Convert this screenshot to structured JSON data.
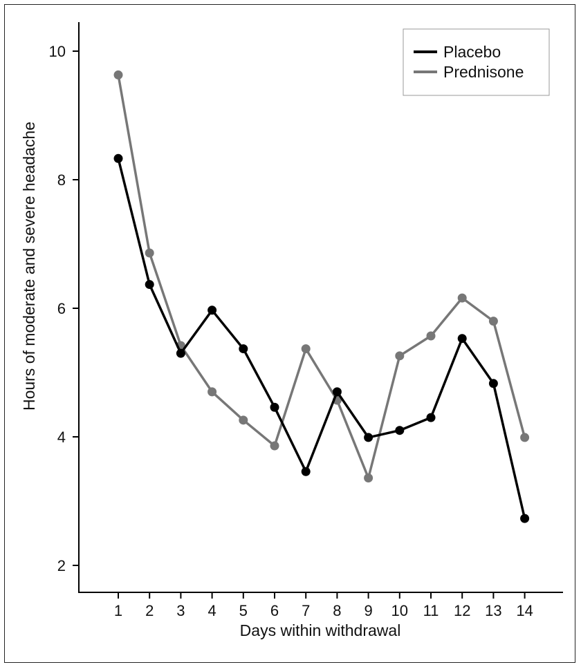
{
  "chart_data": {
    "type": "line",
    "xlabel": "Days within withdrawal",
    "ylabel": "Hours of moderate and severe headache",
    "x": [
      1,
      2,
      3,
      4,
      5,
      6,
      7,
      8,
      9,
      10,
      11,
      12,
      13,
      14
    ],
    "xticks": [
      "1",
      "2",
      "3",
      "4",
      "5",
      "6",
      "7",
      "8",
      "9",
      "10",
      "11",
      "12",
      "13",
      "14"
    ],
    "yticks": [
      "2",
      "4",
      "6",
      "8",
      "10"
    ],
    "ylim": [
      1.5,
      10.5
    ],
    "grid": false,
    "legend_position": "top-right",
    "series": [
      {
        "name": "Placebo",
        "color": "#000000",
        "values": [
          8.33,
          6.37,
          5.3,
          5.97,
          5.37,
          4.46,
          3.46,
          4.7,
          3.99,
          4.1,
          4.3,
          5.53,
          4.83,
          2.73
        ]
      },
      {
        "name": "Prednisone",
        "color": "#777777",
        "values": [
          9.63,
          6.86,
          5.42,
          4.7,
          4.26,
          3.86,
          5.37,
          4.57,
          3.36,
          5.26,
          5.57,
          6.16,
          5.8,
          3.99
        ]
      }
    ]
  }
}
